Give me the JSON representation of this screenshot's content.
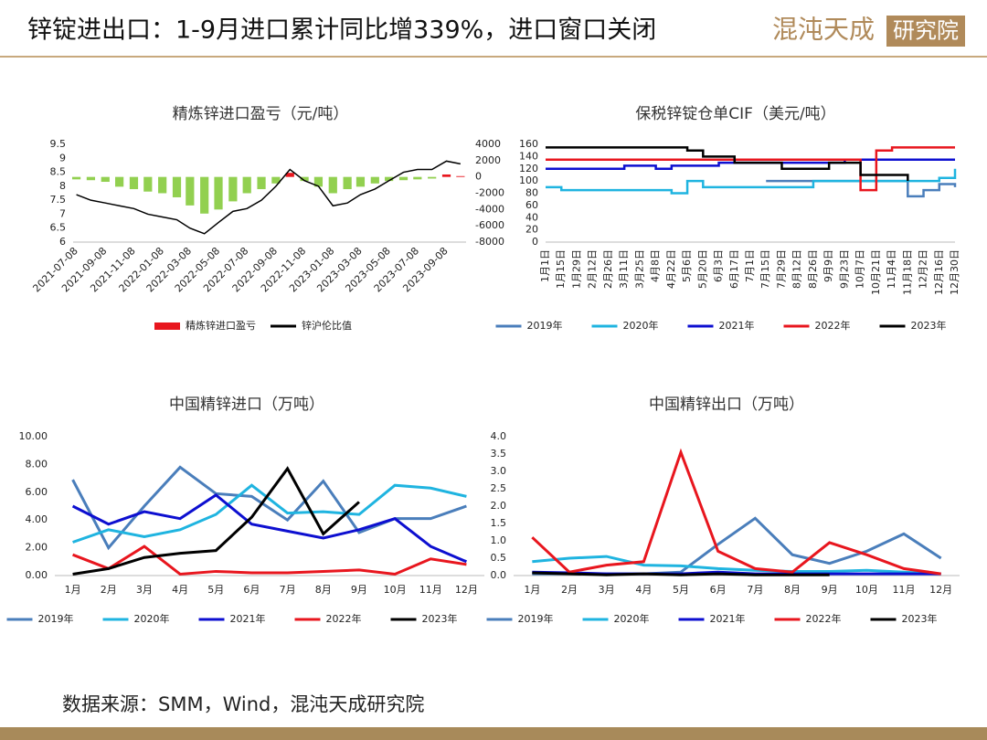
{
  "header": {
    "title": "锌锭进出口：1-9月进口累计同比增339%，进口窗口关闭",
    "logo": "混沌天成",
    "logo_box": "研究院"
  },
  "footer": "数据来源：SMM，Wind，混沌天成研究院",
  "chart_data": [
    {
      "type": "combo",
      "title": "精炼锌进口盈亏（元/吨）",
      "x": [
        "2021-07-08",
        "2021-08-08",
        "2021-09-08",
        "2021-10-08",
        "2021-11-08",
        "2021-12-08",
        "2022-01-08",
        "2022-02-08",
        "2022-03-08",
        "2022-04-08",
        "2022-05-08",
        "2022-06-08",
        "2022-07-08",
        "2022-08-08",
        "2022-09-08",
        "2022-10-08",
        "2022-11-08",
        "2022-12-08",
        "2023-01-08",
        "2023-02-08",
        "2023-03-08",
        "2023-04-08",
        "2023-05-08",
        "2023-06-08",
        "2023-07-08",
        "2023-08-08",
        "2023-09-08",
        "2023-10-08"
      ],
      "xlim": [
        "2021-07-01",
        "2023-10-20"
      ],
      "xticks": [
        "2021-07-08",
        "2021-09-08",
        "2021-11-08",
        "2022-01-08",
        "2022-03-08",
        "2022-05-08",
        "2022-07-08",
        "2022-09-08",
        "2022-11-08",
        "2023-01-08",
        "2023-03-08",
        "2023-05-08",
        "2023-07-08",
        "2023-09-08"
      ],
      "series": [
        {
          "name": "精炼锌进口盈亏",
          "type": "bar",
          "axis": "y2",
          "color": "#e8161e",
          "negative_color": "#92d050",
          "values": [
            -300,
            -400,
            -600,
            -1200,
            -1500,
            -1800,
            -2000,
            -2500,
            -3500,
            -4500,
            -4000,
            -3000,
            -2000,
            -1500,
            -800,
            500,
            -500,
            -1200,
            -2000,
            -1500,
            -1200,
            -800,
            -500,
            -400,
            -300,
            -200,
            300,
            100
          ]
        },
        {
          "name": "锌沪伦比值",
          "type": "line",
          "color": "#000000",
          "values": [
            7.7,
            7.5,
            7.4,
            7.3,
            7.2,
            7.0,
            6.9,
            6.8,
            6.5,
            6.3,
            6.7,
            7.1,
            7.2,
            7.5,
            8.0,
            8.6,
            8.2,
            8.0,
            7.3,
            7.4,
            7.7,
            7.9,
            8.2,
            8.5,
            8.6,
            8.6,
            8.9,
            8.8
          ]
        }
      ],
      "ylim": [
        6,
        9.5
      ],
      "yticks": [
        6,
        6.5,
        7,
        7.5,
        8,
        8.5,
        9,
        9.5
      ],
      "y2lim": [
        -8000,
        4000
      ],
      "y2ticks": [
        -8000,
        -6000,
        -4000,
        -2000,
        0,
        2000,
        4000
      ]
    },
    {
      "type": "line",
      "step": true,
      "title": "保税锌锭仓单CIF（美元/吨）",
      "categories": [
        "1月1日",
        "1月15日",
        "1月29日",
        "2月12日",
        "2月26日",
        "3月11日",
        "3月25日",
        "4月8日",
        "4月22日",
        "5月6日",
        "5月20日",
        "6月3日",
        "6月17日",
        "7月1日",
        "7月15日",
        "7月29日",
        "8月12日",
        "8月26日",
        "9月9日",
        "9月23日",
        "10月7日",
        "10月21日",
        "11月4日",
        "11月18日",
        "12月2日",
        "12月16日",
        "12月30日"
      ],
      "series": [
        {
          "name": "2019年",
          "color": "#4a7ebb",
          "values": [
            null,
            null,
            null,
            null,
            null,
            null,
            null,
            null,
            null,
            null,
            null,
            null,
            null,
            null,
            100,
            100,
            100,
            100,
            100,
            100,
            100,
            100,
            100,
            75,
            85,
            95,
            90
          ]
        },
        {
          "name": "2020年",
          "color": "#1fb4e0",
          "values": [
            90,
            85,
            85,
            85,
            85,
            85,
            85,
            85,
            80,
            100,
            90,
            90,
            90,
            90,
            90,
            90,
            90,
            100,
            100,
            100,
            100,
            100,
            100,
            100,
            100,
            105,
            120
          ]
        },
        {
          "name": "2021年",
          "color": "#0d0fd0",
          "values": [
            120,
            120,
            120,
            120,
            120,
            125,
            125,
            120,
            125,
            125,
            125,
            130,
            130,
            130,
            130,
            130,
            130,
            130,
            130,
            135,
            135,
            135,
            135,
            135,
            135,
            135,
            135
          ]
        },
        {
          "name": "2022年",
          "color": "#e8161e",
          "values": [
            135,
            135,
            135,
            135,
            135,
            135,
            135,
            135,
            135,
            135,
            135,
            135,
            135,
            135,
            135,
            135,
            135,
            135,
            135,
            135,
            85,
            150,
            155,
            155,
            155,
            155,
            155
          ]
        },
        {
          "name": "2023年",
          "color": "#000000",
          "values": [
            155,
            155,
            155,
            155,
            155,
            155,
            155,
            155,
            155,
            150,
            140,
            140,
            130,
            130,
            130,
            120,
            120,
            120,
            130,
            130,
            110,
            110,
            110,
            100,
            null,
            null,
            null
          ]
        }
      ],
      "ylim": [
        0,
        160
      ],
      "yticks": [
        0,
        20,
        40,
        60,
        80,
        100,
        120,
        140,
        160
      ]
    },
    {
      "type": "line",
      "title": "中国精锌进口（万吨）",
      "categories": [
        "1月",
        "2月",
        "3月",
        "4月",
        "5月",
        "6月",
        "7月",
        "8月",
        "9月",
        "10月",
        "11月",
        "12月"
      ],
      "series": [
        {
          "name": "2019年",
          "color": "#4a7ebb",
          "values": [
            6.9,
            2.0,
            5.0,
            7.8,
            5.9,
            5.7,
            4.0,
            6.8,
            3.1,
            4.1,
            4.1,
            5.0
          ]
        },
        {
          "name": "2020年",
          "color": "#1fb4e0",
          "values": [
            2.4,
            3.3,
            2.8,
            3.3,
            4.4,
            6.5,
            4.5,
            4.6,
            4.4,
            6.5,
            6.3,
            5.7
          ]
        },
        {
          "name": "2021年",
          "color": "#0d0fd0",
          "values": [
            5.0,
            3.7,
            4.6,
            4.1,
            5.8,
            3.7,
            3.2,
            2.7,
            3.3,
            4.1,
            2.1,
            1.0
          ]
        },
        {
          "name": "2022年",
          "color": "#e8161e",
          "values": [
            1.5,
            0.5,
            2.1,
            0.1,
            0.3,
            0.2,
            0.2,
            0.3,
            0.4,
            0.1,
            1.2,
            0.8
          ]
        },
        {
          "name": "2023年",
          "color": "#000000",
          "values": [
            0.1,
            0.5,
            1.3,
            1.6,
            1.8,
            4.2,
            7.7,
            3.0,
            5.3,
            null,
            null,
            null
          ]
        }
      ],
      "ylim": [
        0,
        10
      ],
      "yticks": [
        {
          "value": 0,
          "label": "0.00"
        },
        {
          "value": 2,
          "label": "2.00"
        },
        {
          "value": 4,
          "label": "4.00"
        },
        {
          "value": 6,
          "label": "6.00"
        },
        {
          "value": 8,
          "label": "8.00"
        },
        {
          "value": 10,
          "label": "10.00"
        }
      ]
    },
    {
      "type": "line",
      "title": "中国精锌出口（万吨）",
      "categories": [
        "1月",
        "2月",
        "3月",
        "4月",
        "5月",
        "6月",
        "7月",
        "8月",
        "9月",
        "10月",
        "11月",
        "12月"
      ],
      "series": [
        {
          "name": "2019年",
          "color": "#4a7ebb",
          "values": [
            0.05,
            0.05,
            0.05,
            0.05,
            0.1,
            0.9,
            1.65,
            0.6,
            0.35,
            0.7,
            1.2,
            0.5
          ]
        },
        {
          "name": "2020年",
          "color": "#1fb4e0",
          "values": [
            0.4,
            0.5,
            0.55,
            0.3,
            0.28,
            0.2,
            0.15,
            0.12,
            0.12,
            0.15,
            0.1,
            0.05
          ]
        },
        {
          "name": "2021年",
          "color": "#0d0fd0",
          "values": [
            0.1,
            0.08,
            0.05,
            0.05,
            0.05,
            0.1,
            0.05,
            0.05,
            0.05,
            0.05,
            0.05,
            0.05
          ]
        },
        {
          "name": "2022年",
          "color": "#e8161e",
          "values": [
            1.1,
            0.1,
            0.3,
            0.4,
            3.55,
            0.7,
            0.2,
            0.1,
            0.95,
            0.6,
            0.2,
            0.05
          ]
        },
        {
          "name": "2023年",
          "color": "#000000",
          "values": [
            0.08,
            0.05,
            0.02,
            0.05,
            0.02,
            0.05,
            0.02,
            0.02,
            0.02,
            null,
            null,
            null
          ]
        }
      ],
      "ylim": [
        0,
        4
      ],
      "yticks": [
        {
          "value": 0,
          "label": "0.0"
        },
        {
          "value": 0.5,
          "label": "0.5"
        },
        {
          "value": 1,
          "label": "1.0"
        },
        {
          "value": 1.5,
          "label": "1.5"
        },
        {
          "value": 2,
          "label": "2.0"
        },
        {
          "value": 2.5,
          "label": "2.5"
        },
        {
          "value": 3,
          "label": "3.0"
        },
        {
          "value": 3.5,
          "label": "3.5"
        },
        {
          "value": 4,
          "label": "4.0"
        }
      ]
    }
  ]
}
